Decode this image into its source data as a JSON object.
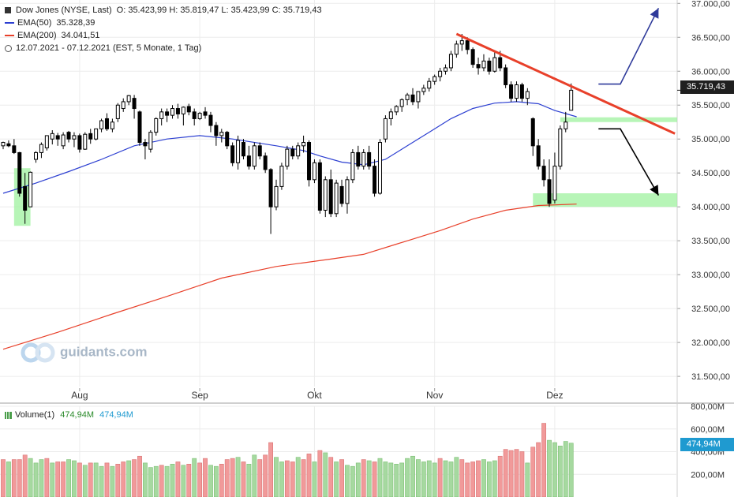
{
  "header": {
    "instrument": "Dow Jones (NYSE, Last)",
    "ohlc": "O: 35.423,99   H: 35.819,47   L: 35.423,99   C: 35.719,43",
    "ema50_label": "EMA(50)",
    "ema50_value": "35.328,39",
    "ema200_label": "EMA(200)",
    "ema200_value": "34.041,51",
    "range": "12.07.2021 - 07.12.2021   (EST, 5 Monate, 1 Tag)"
  },
  "last_price_badge": "35.719,43",
  "volume": {
    "label": "Volume(1)",
    "value1": "474,94M",
    "value2": "474,94M",
    "badge": "474,94M"
  },
  "watermark": "guidants.com",
  "colors": {
    "up": "#ffffff",
    "down": "#000000",
    "ema50": "#2c3fd1",
    "ema200": "#e8402a",
    "trendline": "#e8402a",
    "zone": "#9ff29f",
    "arrow_up": "#2e3a9a",
    "arrow_down": "#000000",
    "vol_up": "#a6d9a0",
    "vol_down": "#f19a9a"
  },
  "chart_data": {
    "type": "candlestick",
    "title": "Dow Jones (NYSE, Last)",
    "y_axis": {
      "ticks": [
        31500,
        32000,
        32500,
        33000,
        33500,
        34000,
        34500,
        35000,
        35500,
        36000,
        36500,
        37000
      ],
      "tick_labels": [
        "31.500,00",
        "32.000,00",
        "32.500,00",
        "33.000,00",
        "33.500,00",
        "34.000,00",
        "34.500,00",
        "35.000,00",
        "35.500,00",
        "36.000,00",
        "36.500,00",
        "37.000,00"
      ],
      "range": [
        31350,
        37050
      ]
    },
    "x_axis": {
      "ticks": [
        {
          "label": "Aug",
          "index": 14
        },
        {
          "label": "Sep",
          "index": 36
        },
        {
          "label": "Okt",
          "index": 57
        },
        {
          "label": "Nov",
          "index": 79
        },
        {
          "label": "Dez",
          "index": 101
        }
      ]
    },
    "volume_axis": {
      "ticks": [
        200,
        400,
        600,
        800
      ],
      "tick_labels": [
        "200,00M",
        "400,00M",
        "600,00M",
        "800,00M"
      ],
      "range": [
        0,
        800
      ]
    },
    "candles": [
      [
        34900,
        34960,
        34850,
        34950
      ],
      [
        34930,
        34980,
        34880,
        34900
      ],
      [
        34900,
        35000,
        34780,
        34800
      ],
      [
        34800,
        34810,
        34150,
        34200
      ],
      [
        34300,
        34500,
        33750,
        33950
      ],
      [
        34000,
        34520,
        34000,
        34510
      ],
      [
        34700,
        34820,
        34650,
        34800
      ],
      [
        34800,
        34950,
        34720,
        34920
      ],
      [
        34870,
        35050,
        34830,
        35050
      ],
      [
        35000,
        35130,
        34920,
        35080
      ],
      [
        35050,
        35090,
        34900,
        35000
      ],
      [
        34900,
        35100,
        34850,
        35060
      ],
      [
        35100,
        35120,
        34950,
        35000
      ],
      [
        35000,
        35100,
        34880,
        35050
      ],
      [
        35050,
        35080,
        34800,
        34850
      ],
      [
        34850,
        35100,
        34840,
        35070
      ],
      [
        35080,
        35150,
        34930,
        35000
      ],
      [
        35000,
        35150,
        34980,
        35150
      ],
      [
        35150,
        35300,
        35100,
        35270
      ],
      [
        35300,
        35380,
        35120,
        35150
      ],
      [
        35150,
        35300,
        35100,
        35250
      ],
      [
        35300,
        35530,
        35250,
        35500
      ],
      [
        35450,
        35600,
        35400,
        35550
      ],
      [
        35550,
        35650,
        35500,
        35640
      ],
      [
        35600,
        35650,
        35300,
        35450
      ],
      [
        35400,
        35420,
        34900,
        34950
      ],
      [
        34950,
        35000,
        34700,
        34900
      ],
      [
        34850,
        35130,
        34800,
        35100
      ],
      [
        35100,
        35320,
        35050,
        35300
      ],
      [
        35300,
        35450,
        35200,
        35400
      ],
      [
        35400,
        35450,
        35250,
        35350
      ],
      [
        35350,
        35500,
        35300,
        35450
      ],
      [
        35450,
        35520,
        35300,
        35370
      ],
      [
        35370,
        35480,
        35200,
        35470
      ],
      [
        35480,
        35520,
        35350,
        35400
      ],
      [
        35400,
        35450,
        35200,
        35300
      ],
      [
        35300,
        35400,
        35280,
        35380
      ],
      [
        35400,
        35470,
        35300,
        35350
      ],
      [
        35350,
        35400,
        35100,
        35200
      ],
      [
        35200,
        35250,
        34900,
        35050
      ],
      [
        35050,
        35150,
        34950,
        35100
      ],
      [
        35100,
        35120,
        34850,
        34900
      ],
      [
        34900,
        34950,
        34600,
        34650
      ],
      [
        34650,
        35050,
        34550,
        34980
      ],
      [
        34950,
        35000,
        34700,
        34750
      ],
      [
        34750,
        34900,
        34550,
        34600
      ],
      [
        34600,
        34950,
        34550,
        34900
      ],
      [
        34900,
        34950,
        34700,
        34750
      ],
      [
        34750,
        34800,
        34500,
        34550
      ],
      [
        34550,
        34570,
        33600,
        34000
      ],
      [
        34000,
        34400,
        33950,
        34300
      ],
      [
        34300,
        34650,
        34250,
        34600
      ],
      [
        34600,
        34900,
        34550,
        34850
      ],
      [
        34850,
        34900,
        34700,
        34750
      ],
      [
        34750,
        34950,
        34700,
        34900
      ],
      [
        34900,
        35050,
        34800,
        34950
      ],
      [
        34950,
        34980,
        34300,
        34400
      ],
      [
        34400,
        34700,
        34350,
        34650
      ],
      [
        34650,
        34700,
        33900,
        33950
      ],
      [
        33950,
        34450,
        33850,
        34400
      ],
      [
        34400,
        34550,
        33850,
        33900
      ],
      [
        33900,
        34400,
        33850,
        34350
      ],
      [
        34300,
        34400,
        34000,
        34050
      ],
      [
        34050,
        34450,
        33900,
        34400
      ],
      [
        34400,
        34850,
        34350,
        34800
      ],
      [
        34800,
        34900,
        34550,
        34600
      ],
      [
        34600,
        34850,
        34550,
        34800
      ],
      [
        34800,
        34900,
        34550,
        34600
      ],
      [
        34600,
        34700,
        34150,
        34200
      ],
      [
        34200,
        35000,
        34180,
        34950
      ],
      [
        35000,
        35350,
        34950,
        35300
      ],
      [
        35300,
        35450,
        35200,
        35400
      ],
      [
        35400,
        35500,
        35350,
        35480
      ],
      [
        35480,
        35600,
        35400,
        35580
      ],
      [
        35580,
        35680,
        35500,
        35650
      ],
      [
        35650,
        35750,
        35500,
        35550
      ],
      [
        35550,
        35700,
        35450,
        35700
      ],
      [
        35700,
        35800,
        35650,
        35750
      ],
      [
        35750,
        35900,
        35700,
        35850
      ],
      [
        35850,
        35950,
        35800,
        35920
      ],
      [
        35920,
        36050,
        35850,
        36000
      ],
      [
        36000,
        36100,
        35950,
        36050
      ],
      [
        36050,
        36300,
        36000,
        36250
      ],
      [
        36250,
        36450,
        36200,
        36400
      ],
      [
        36400,
        36550,
        36300,
        36450
      ],
      [
        36450,
        36500,
        36250,
        36320
      ],
      [
        36320,
        36350,
        36050,
        36100
      ],
      [
        36100,
        36200,
        35950,
        36050
      ],
      [
        36050,
        36250,
        36000,
        36150
      ],
      [
        36150,
        36200,
        35950,
        36000
      ],
      [
        36000,
        36280,
        35980,
        36200
      ],
      [
        36200,
        36300,
        36000,
        36050
      ],
      [
        36050,
        36100,
        35750,
        35800
      ],
      [
        35800,
        35850,
        35550,
        35600
      ],
      [
        35600,
        35850,
        35550,
        35800
      ],
      [
        35800,
        35830,
        35550,
        35600
      ],
      [
        35600,
        35750,
        35500,
        35700
      ],
      [
        35300,
        35320,
        34750,
        34900
      ],
      [
        34900,
        35000,
        34550,
        34600
      ],
      [
        34600,
        34700,
        34300,
        34400
      ],
      [
        34400,
        34700,
        34000,
        34050
      ],
      [
        34100,
        34800,
        34050,
        34600
      ],
      [
        34600,
        35200,
        34550,
        35150
      ],
      [
        35150,
        35400,
        35100,
        35250
      ],
      [
        35423.99,
        35819.47,
        35423.99,
        35719.43
      ]
    ],
    "ema50": [
      [
        0,
        34200
      ],
      [
        6,
        34350
      ],
      [
        12,
        34520
      ],
      [
        18,
        34700
      ],
      [
        24,
        34900
      ],
      [
        30,
        35000
      ],
      [
        36,
        35050
      ],
      [
        42,
        35000
      ],
      [
        50,
        34900
      ],
      [
        55,
        34830
      ],
      [
        58,
        34750
      ],
      [
        62,
        34660
      ],
      [
        66,
        34620
      ],
      [
        70,
        34700
      ],
      [
        74,
        34900
      ],
      [
        78,
        35100
      ],
      [
        82,
        35300
      ],
      [
        86,
        35450
      ],
      [
        90,
        35530
      ],
      [
        94,
        35550
      ],
      [
        98,
        35520
      ],
      [
        101,
        35420
      ],
      [
        105,
        35328
      ]
    ],
    "ema200": [
      [
        0,
        31900
      ],
      [
        10,
        32150
      ],
      [
        20,
        32420
      ],
      [
        30,
        32680
      ],
      [
        40,
        32950
      ],
      [
        50,
        33120
      ],
      [
        60,
        33230
      ],
      [
        66,
        33300
      ],
      [
        72,
        33450
      ],
      [
        80,
        33650
      ],
      [
        86,
        33820
      ],
      [
        92,
        33950
      ],
      [
        98,
        34020
      ],
      [
        105,
        34041
      ]
    ],
    "volume": [
      [
        330,
        0
      ],
      [
        310,
        1
      ],
      [
        330,
        0
      ],
      [
        330,
        0
      ],
      [
        370,
        0
      ],
      [
        340,
        1
      ],
      [
        300,
        1
      ],
      [
        330,
        1
      ],
      [
        340,
        0
      ],
      [
        300,
        1
      ],
      [
        310,
        0
      ],
      [
        310,
        0
      ],
      [
        330,
        1
      ],
      [
        320,
        1
      ],
      [
        300,
        0
      ],
      [
        280,
        1
      ],
      [
        300,
        0
      ],
      [
        300,
        1
      ],
      [
        270,
        1
      ],
      [
        300,
        0
      ],
      [
        270,
        1
      ],
      [
        290,
        0
      ],
      [
        310,
        0
      ],
      [
        320,
        1
      ],
      [
        330,
        0
      ],
      [
        360,
        0
      ],
      [
        300,
        1
      ],
      [
        260,
        1
      ],
      [
        270,
        1
      ],
      [
        280,
        0
      ],
      [
        270,
        1
      ],
      [
        290,
        1
      ],
      [
        310,
        0
      ],
      [
        280,
        1
      ],
      [
        290,
        0
      ],
      [
        340,
        1
      ],
      [
        300,
        0
      ],
      [
        340,
        0
      ],
      [
        280,
        1
      ],
      [
        270,
        1
      ],
      [
        290,
        0
      ],
      [
        330,
        0
      ],
      [
        340,
        0
      ],
      [
        350,
        1
      ],
      [
        310,
        0
      ],
      [
        290,
        1
      ],
      [
        370,
        1
      ],
      [
        330,
        0
      ],
      [
        370,
        0
      ],
      [
        480,
        0
      ],
      [
        350,
        1
      ],
      [
        310,
        1
      ],
      [
        320,
        0
      ],
      [
        310,
        0
      ],
      [
        350,
        1
      ],
      [
        330,
        0
      ],
      [
        380,
        0
      ],
      [
        310,
        1
      ],
      [
        410,
        0
      ],
      [
        390,
        1
      ],
      [
        350,
        0
      ],
      [
        310,
        1
      ],
      [
        330,
        0
      ],
      [
        280,
        1
      ],
      [
        270,
        1
      ],
      [
        300,
        1
      ],
      [
        330,
        0
      ],
      [
        320,
        1
      ],
      [
        310,
        0
      ],
      [
        340,
        1
      ],
      [
        310,
        1
      ],
      [
        300,
        1
      ],
      [
        290,
        1
      ],
      [
        300,
        1
      ],
      [
        340,
        1
      ],
      [
        360,
        1
      ],
      [
        330,
        1
      ],
      [
        310,
        1
      ],
      [
        320,
        1
      ],
      [
        300,
        1
      ],
      [
        340,
        0
      ],
      [
        320,
        1
      ],
      [
        310,
        1
      ],
      [
        350,
        1
      ],
      [
        330,
        0
      ],
      [
        300,
        0
      ],
      [
        310,
        0
      ],
      [
        320,
        0
      ],
      [
        330,
        1
      ],
      [
        310,
        1
      ],
      [
        320,
        1
      ],
      [
        360,
        0
      ],
      [
        420,
        0
      ],
      [
        410,
        0
      ],
      [
        420,
        0
      ],
      [
        400,
        0
      ],
      [
        300,
        1
      ],
      [
        440,
        0
      ],
      [
        480,
        0
      ],
      [
        650,
        0
      ],
      [
        500,
        1
      ],
      [
        480,
        1
      ],
      [
        450,
        1
      ],
      [
        490,
        1
      ],
      [
        474.94,
        1
      ]
    ]
  },
  "annotations": {
    "trendline": {
      "from": [
        83,
        36550
      ],
      "to": [
        123,
        35080
      ]
    },
    "support_zone": {
      "x": [
        97,
        126
      ],
      "y": [
        34000,
        34200
      ]
    },
    "resistance_zone": {
      "x": [
        102,
        126
      ],
      "y": [
        35250,
        35320
      ]
    },
    "left_zone": {
      "x": [
        2,
        5
      ],
      "y": [
        33720,
        34570
      ]
    },
    "arrow_up": {
      "points": [
        [
          109,
          35810
        ],
        [
          113,
          35810
        ],
        [
          120,
          36930
        ]
      ]
    },
    "arrow_down": {
      "points": [
        [
          109,
          35150
        ],
        [
          113,
          35150
        ],
        [
          120,
          34170
        ]
      ]
    }
  }
}
